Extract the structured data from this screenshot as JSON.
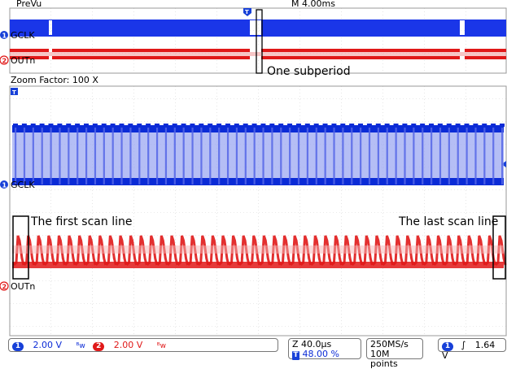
{
  "header": {
    "mode": "PreVu",
    "timebase": "M 4.00ms",
    "zoom_factor": "Zoom Factor: 100 X"
  },
  "channels": {
    "ch1": {
      "number": "1",
      "name": "GCLK",
      "color": "#0b2bd6"
    },
    "ch2": {
      "number": "2",
      "name": "OUTn",
      "color": "#e01818"
    }
  },
  "annotations": {
    "subperiod": "One subperiod",
    "first_scan": "The first scan line",
    "last_scan": "The last scan line"
  },
  "status": {
    "ch1_volts": "2.00 V",
    "ch2_volts": "2.00 V",
    "zoom_time": "Z 40.0µs",
    "trigger_pos": "48.00 %",
    "sample_rate": "250MS/s",
    "record_length": "10M points",
    "trig_channel": "1",
    "trig_level": "1.64 V"
  }
}
